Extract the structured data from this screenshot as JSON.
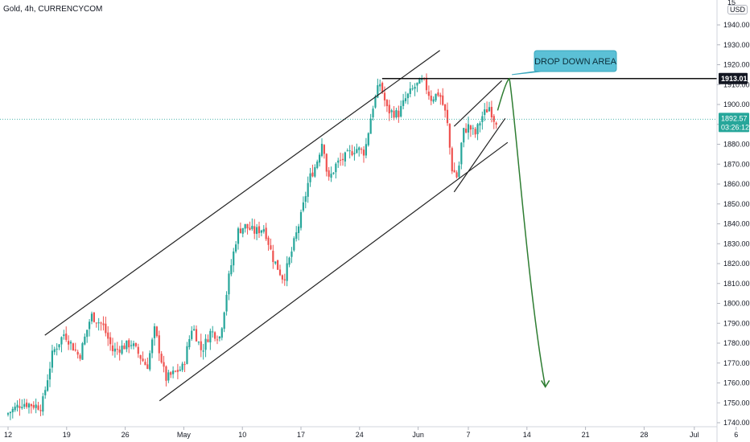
{
  "header": {
    "title": "Gold, 4h, CURRENCYCOM",
    "currency": "USD",
    "top_clip": "15"
  },
  "chart_data": {
    "type": "candlestick",
    "title": "Gold, 4h, CURRENCYCOM",
    "y_ticks": [
      1740,
      1750,
      1760,
      1770,
      1780,
      1790,
      1800,
      1810,
      1820,
      1830,
      1840,
      1850,
      1860,
      1870,
      1880,
      1890,
      1900,
      1910,
      1920,
      1930,
      1940
    ],
    "y_tick_labels": [
      "1740.00",
      "1750.00",
      "1760.00",
      "1770.00",
      "1780.00",
      "1790.00",
      "1800.00",
      "1810.00",
      "1820.00",
      "1830.00",
      "1840.00",
      "1850.00",
      "1860.00",
      "1870.00",
      "1880.00",
      "1890.00",
      "1900.00",
      "1910.00",
      "1920.00",
      "1930.00",
      "1940.00"
    ],
    "ylim": [
      1738,
      1960
    ],
    "x_ticks": [
      {
        "label": "12",
        "day": 0
      },
      {
        "label": "19",
        "day": 7
      },
      {
        "label": "26",
        "day": 14
      },
      {
        "label": "May",
        "day": 21
      },
      {
        "label": "10",
        "day": 28
      },
      {
        "label": "17",
        "day": 35
      },
      {
        "label": "24",
        "day": 42
      },
      {
        "label": "Jun",
        "day": 49
      },
      {
        "label": "7",
        "day": 55
      },
      {
        "label": "14",
        "day": 62
      },
      {
        "label": "21",
        "day": 69
      },
      {
        "label": "28",
        "day": 76
      },
      {
        "label": "Jul",
        "day": 82
      },
      {
        "label": "6",
        "day": 87
      }
    ],
    "current_price": {
      "value": 1892.57,
      "label": "1892.57",
      "countdown": "03:26:12",
      "color": "#26a69a"
    },
    "resistance": {
      "value": 1913.01,
      "label": "1913.01",
      "from_day": 44.7,
      "to_day": 90
    },
    "anchors": [
      {
        "day": 0.0,
        "price": 1744
      },
      {
        "day": 2.0,
        "price": 1750
      },
      {
        "day": 4.3,
        "price": 1748
      },
      {
        "day": 5.6,
        "price": 1775
      },
      {
        "day": 7.0,
        "price": 1785
      },
      {
        "day": 8.8,
        "price": 1773
      },
      {
        "day": 10.2,
        "price": 1794
      },
      {
        "day": 11.6,
        "price": 1789
      },
      {
        "day": 12.8,
        "price": 1776
      },
      {
        "day": 15.0,
        "price": 1780
      },
      {
        "day": 16.9,
        "price": 1768
      },
      {
        "day": 17.8,
        "price": 1787
      },
      {
        "day": 19.1,
        "price": 1762
      },
      {
        "day": 21.2,
        "price": 1768
      },
      {
        "day": 22.3,
        "price": 1789
      },
      {
        "day": 23.4,
        "price": 1776
      },
      {
        "day": 24.5,
        "price": 1786
      },
      {
        "day": 25.6,
        "price": 1783
      },
      {
        "day": 26.7,
        "price": 1814
      },
      {
        "day": 27.7,
        "price": 1836
      },
      {
        "day": 28.5,
        "price": 1839
      },
      {
        "day": 29.7,
        "price": 1836
      },
      {
        "day": 30.9,
        "price": 1838
      },
      {
        "day": 31.9,
        "price": 1823
      },
      {
        "day": 33.2,
        "price": 1812
      },
      {
        "day": 34.1,
        "price": 1825
      },
      {
        "day": 35.3,
        "price": 1844
      },
      {
        "day": 36.2,
        "price": 1862
      },
      {
        "day": 37.1,
        "price": 1870
      },
      {
        "day": 37.9,
        "price": 1883
      },
      {
        "day": 38.5,
        "price": 1861
      },
      {
        "day": 39.5,
        "price": 1870
      },
      {
        "day": 40.7,
        "price": 1874
      },
      {
        "day": 41.8,
        "price": 1878
      },
      {
        "day": 42.9,
        "price": 1876
      },
      {
        "day": 43.8,
        "price": 1898
      },
      {
        "day": 44.7,
        "price": 1911
      },
      {
        "day": 45.6,
        "price": 1897
      },
      {
        "day": 46.9,
        "price": 1895
      },
      {
        "day": 47.8,
        "price": 1903
      },
      {
        "day": 48.9,
        "price": 1909
      },
      {
        "day": 49.9,
        "price": 1912
      },
      {
        "day": 50.8,
        "price": 1903
      },
      {
        "day": 51.8,
        "price": 1906
      },
      {
        "day": 52.7,
        "price": 1893
      },
      {
        "day": 53.3,
        "price": 1868
      },
      {
        "day": 54.0,
        "price": 1863
      },
      {
        "day": 54.6,
        "price": 1886
      },
      {
        "day": 55.3,
        "price": 1889
      },
      {
        "day": 56.1,
        "price": 1885
      },
      {
        "day": 56.9,
        "price": 1894
      },
      {
        "day": 57.8,
        "price": 1899
      },
      {
        "day": 58.4,
        "price": 1892
      }
    ],
    "annotations": [
      {
        "text": "DROP DOWN AREA",
        "type": "callout",
        "color": "#5bc0d6"
      },
      {
        "type": "trendline",
        "name": "upper-channel",
        "points": [
          {
            "day": 4.4,
            "price": 1784
          },
          {
            "day": 46.6,
            "price": 1912
          }
        ],
        "extend_to_day": 51.6
      },
      {
        "type": "trendline",
        "name": "lower-channel",
        "points": [
          {
            "day": 18.1,
            "price": 1751
          },
          {
            "day": 59.4,
            "price": 1880
          }
        ],
        "extend_to_day": 59.7
      },
      {
        "type": "trendline",
        "name": "wedge-upper",
        "points": [
          {
            "day": 53.3,
            "price": 1889
          },
          {
            "day": 59.0,
            "price": 1912
          }
        ]
      },
      {
        "type": "trendline",
        "name": "wedge-lower",
        "points": [
          {
            "day": 53.3,
            "price": 1856
          },
          {
            "day": 59.4,
            "price": 1893
          }
        ]
      },
      {
        "type": "projection-arrow",
        "color": "#2e7d32",
        "path_days": [
          {
            "day": 58.5,
            "price": 1897
          },
          {
            "day": 59.5,
            "price": 1912
          },
          {
            "day": 59.9,
            "price": 1913
          },
          {
            "day": 60.5,
            "price": 1900
          },
          {
            "day": 62.2,
            "price": 1803
          },
          {
            "day": 64.2,
            "price": 1758
          }
        ]
      }
    ],
    "grid": false,
    "colors": {
      "up": "#26a69a",
      "down": "#ef5350",
      "lines": "#222222",
      "axis_text": "#131722"
    }
  }
}
